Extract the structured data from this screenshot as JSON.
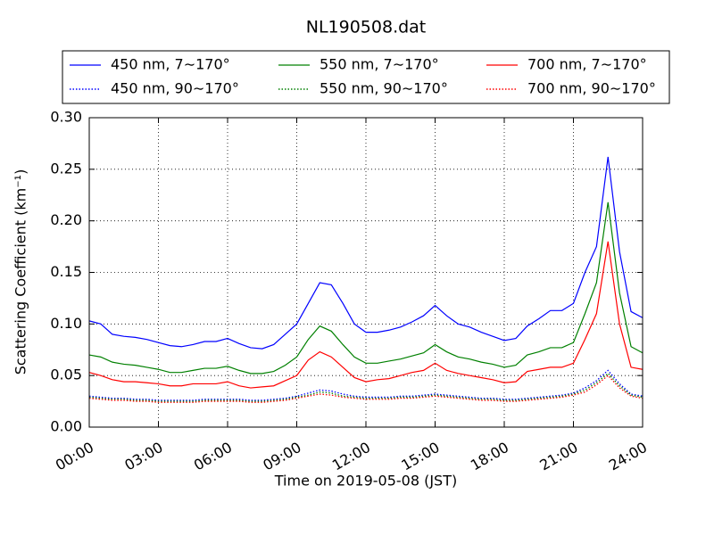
{
  "chart_data": {
    "type": "line",
    "title": "NL190508.dat",
    "xlabel": "Time on 2019-05-08 (JST)",
    "ylabel": "Scattering Coefficient (km⁻¹)",
    "x": [
      0,
      0.5,
      1,
      1.5,
      2,
      2.5,
      3,
      3.5,
      4,
      4.5,
      5,
      5.5,
      6,
      6.5,
      7,
      7.5,
      8,
      8.5,
      9,
      9.5,
      10,
      10.5,
      11,
      11.5,
      12,
      12.5,
      13,
      13.5,
      14,
      14.5,
      15,
      15.5,
      16,
      16.5,
      17,
      17.5,
      18,
      18.5,
      19,
      19.5,
      20,
      20.5,
      21,
      21.5,
      22,
      22.5,
      23,
      23.5,
      24
    ],
    "xlim": [
      0,
      24
    ],
    "xticks": [
      {
        "value": 0,
        "label": "00:00"
      },
      {
        "value": 3,
        "label": "03:00"
      },
      {
        "value": 6,
        "label": "06:00"
      },
      {
        "value": 9,
        "label": "09:00"
      },
      {
        "value": 12,
        "label": "12:00"
      },
      {
        "value": 15,
        "label": "15:00"
      },
      {
        "value": 18,
        "label": "18:00"
      },
      {
        "value": 21,
        "label": "21:00"
      },
      {
        "value": 24,
        "label": "24:00"
      }
    ],
    "ylim": [
      0,
      0.3
    ],
    "yticks": [
      {
        "value": 0,
        "label": "0.00"
      },
      0.05,
      {
        "value": 0.1,
        "label": "0.10"
      },
      0.15,
      {
        "value": 0.2,
        "label": "0.20"
      },
      0.25,
      {
        "value": 0.3,
        "label": "0.30"
      }
    ],
    "grid": true,
    "legend": "top",
    "series": [
      {
        "name": "450 nm, 7∼170°",
        "color": "#0000ff",
        "style": "solid",
        "values": [
          0.103,
          0.1,
          0.09,
          0.088,
          0.087,
          0.085,
          0.082,
          0.079,
          0.078,
          0.08,
          0.083,
          0.083,
          0.086,
          0.081,
          0.077,
          0.076,
          0.08,
          0.09,
          0.1,
          0.12,
          0.14,
          0.138,
          0.12,
          0.1,
          0.092,
          0.092,
          0.094,
          0.097,
          0.102,
          0.108,
          0.118,
          0.108,
          0.1,
          0.097,
          0.092,
          0.088,
          0.084,
          0.086,
          0.098,
          0.105,
          0.113,
          0.113,
          0.12,
          0.15,
          0.175,
          0.262,
          0.17,
          0.112,
          0.106
        ]
      },
      {
        "name": "450 nm, 90∼170°",
        "color": "#0000ff",
        "style": "dotted",
        "values": [
          0.03,
          0.029,
          0.028,
          0.028,
          0.027,
          0.027,
          0.026,
          0.026,
          0.026,
          0.026,
          0.027,
          0.027,
          0.027,
          0.027,
          0.026,
          0.026,
          0.027,
          0.028,
          0.03,
          0.033,
          0.036,
          0.035,
          0.032,
          0.03,
          0.029,
          0.029,
          0.029,
          0.03,
          0.03,
          0.031,
          0.032,
          0.031,
          0.03,
          0.029,
          0.028,
          0.028,
          0.027,
          0.027,
          0.028,
          0.029,
          0.03,
          0.031,
          0.033,
          0.038,
          0.045,
          0.055,
          0.042,
          0.032,
          0.03
        ]
      },
      {
        "name": "550 nm, 7∼170°",
        "color": "#008000",
        "style": "solid",
        "values": [
          0.07,
          0.068,
          0.063,
          0.061,
          0.06,
          0.058,
          0.056,
          0.053,
          0.053,
          0.055,
          0.057,
          0.057,
          0.059,
          0.055,
          0.052,
          0.052,
          0.054,
          0.06,
          0.068,
          0.085,
          0.098,
          0.093,
          0.08,
          0.068,
          0.062,
          0.062,
          0.064,
          0.066,
          0.069,
          0.072,
          0.08,
          0.073,
          0.068,
          0.066,
          0.063,
          0.061,
          0.058,
          0.06,
          0.07,
          0.073,
          0.077,
          0.077,
          0.082,
          0.11,
          0.14,
          0.218,
          0.13,
          0.078,
          0.072
        ]
      },
      {
        "name": "550 nm, 90∼170°",
        "color": "#008000",
        "style": "dotted",
        "values": [
          0.029,
          0.028,
          0.027,
          0.027,
          0.026,
          0.026,
          0.025,
          0.025,
          0.025,
          0.025,
          0.026,
          0.026,
          0.026,
          0.026,
          0.025,
          0.025,
          0.026,
          0.027,
          0.029,
          0.031,
          0.034,
          0.033,
          0.03,
          0.029,
          0.028,
          0.028,
          0.028,
          0.029,
          0.029,
          0.03,
          0.031,
          0.03,
          0.029,
          0.028,
          0.027,
          0.027,
          0.026,
          0.026,
          0.027,
          0.028,
          0.029,
          0.03,
          0.032,
          0.036,
          0.043,
          0.052,
          0.04,
          0.031,
          0.029
        ]
      },
      {
        "name": "700 nm, 7∼170°",
        "color": "#ff0000",
        "style": "solid",
        "values": [
          0.053,
          0.05,
          0.046,
          0.044,
          0.044,
          0.043,
          0.042,
          0.04,
          0.04,
          0.042,
          0.042,
          0.042,
          0.044,
          0.04,
          0.038,
          0.039,
          0.04,
          0.045,
          0.05,
          0.065,
          0.073,
          0.068,
          0.058,
          0.048,
          0.044,
          0.046,
          0.047,
          0.05,
          0.053,
          0.055,
          0.062,
          0.055,
          0.052,
          0.05,
          0.048,
          0.046,
          0.043,
          0.044,
          0.054,
          0.056,
          0.058,
          0.058,
          0.062,
          0.085,
          0.11,
          0.18,
          0.1,
          0.058,
          0.056
        ]
      },
      {
        "name": "700 nm, 90∼170°",
        "color": "#ff0000",
        "style": "dotted",
        "values": [
          0.028,
          0.027,
          0.026,
          0.026,
          0.025,
          0.025,
          0.024,
          0.024,
          0.024,
          0.024,
          0.025,
          0.025,
          0.025,
          0.025,
          0.024,
          0.024,
          0.025,
          0.026,
          0.028,
          0.03,
          0.032,
          0.031,
          0.029,
          0.028,
          0.027,
          0.027,
          0.027,
          0.028,
          0.028,
          0.029,
          0.03,
          0.029,
          0.028,
          0.027,
          0.026,
          0.026,
          0.025,
          0.025,
          0.026,
          0.027,
          0.028,
          0.029,
          0.031,
          0.034,
          0.041,
          0.05,
          0.038,
          0.03,
          0.028
        ]
      }
    ]
  }
}
